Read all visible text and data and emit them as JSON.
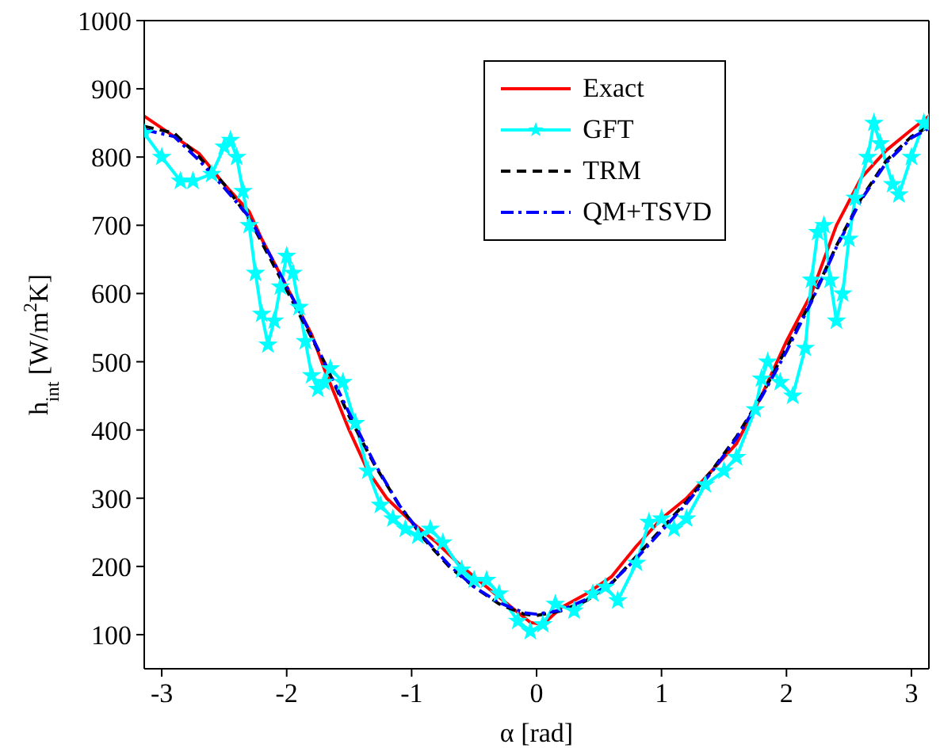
{
  "chart_data": {
    "type": "line",
    "xlabel": "α [rad]",
    "ylabel": "h$_{int}$ [W/m$^{2}$K]",
    "xlim": [
      -3.14,
      3.14
    ],
    "ylim": [
      50,
      1000
    ],
    "xticks": [
      -3,
      -2,
      -1,
      0,
      1,
      2,
      3
    ],
    "yticks": [
      100,
      200,
      300,
      400,
      500,
      600,
      700,
      800,
      900,
      1000
    ],
    "grid": false,
    "legend": "top right",
    "series": [
      {
        "name": "Exact",
        "color": "#ff0000",
        "line_style": "solid",
        "marker": "none",
        "x": [
          -3.14,
          -2.9,
          -2.7,
          -2.5,
          -2.3,
          -2.2,
          -2.0,
          -1.8,
          -1.7,
          -1.5,
          -1.35,
          -1.2,
          -1.0,
          -0.8,
          -0.6,
          -0.4,
          -0.2,
          -0.05,
          0.05,
          0.2,
          0.4,
          0.6,
          0.8,
          1.0,
          1.2,
          1.4,
          1.6,
          1.8,
          1.9,
          2.0,
          2.2,
          2.4,
          2.6,
          2.8,
          3.0,
          3.14
        ],
        "values": [
          860,
          830,
          805,
          760,
          720,
          680,
          610,
          540,
          490,
          400,
          340,
          300,
          265,
          235,
          200,
          170,
          140,
          118,
          115,
          140,
          160,
          185,
          230,
          270,
          300,
          340,
          380,
          450,
          490,
          530,
          600,
          700,
          770,
          810,
          840,
          860
        ]
      },
      {
        "name": "GFT",
        "color": "#00ffff",
        "line_style": "solid",
        "marker": "star",
        "x": [
          -3.14,
          -3.0,
          -2.85,
          -2.75,
          -2.6,
          -2.5,
          -2.45,
          -2.4,
          -2.35,
          -2.3,
          -2.25,
          -2.2,
          -2.15,
          -2.1,
          -2.05,
          -2.0,
          -1.95,
          -1.9,
          -1.85,
          -1.8,
          -1.75,
          -1.7,
          -1.65,
          -1.55,
          -1.45,
          -1.35,
          -1.25,
          -1.15,
          -1.05,
          -0.95,
          -0.85,
          -0.75,
          -0.6,
          -0.5,
          -0.4,
          -0.3,
          -0.15,
          -0.05,
          0.05,
          0.15,
          0.3,
          0.45,
          0.55,
          0.65,
          0.8,
          0.9,
          1.0,
          1.1,
          1.2,
          1.35,
          1.5,
          1.6,
          1.75,
          1.8,
          1.85,
          1.95,
          2.05,
          2.15,
          2.2,
          2.25,
          2.3,
          2.35,
          2.4,
          2.45,
          2.5,
          2.55,
          2.65,
          2.7,
          2.75,
          2.85,
          2.9,
          3.0,
          3.1,
          3.14
        ],
        "values": [
          835,
          800,
          765,
          765,
          775,
          815,
          825,
          800,
          750,
          700,
          630,
          570,
          525,
          560,
          610,
          655,
          630,
          580,
          530,
          480,
          460,
          470,
          490,
          470,
          410,
          340,
          290,
          270,
          255,
          245,
          255,
          235,
          195,
          180,
          180,
          160,
          120,
          105,
          115,
          145,
          135,
          160,
          170,
          150,
          205,
          265,
          270,
          255,
          270,
          320,
          340,
          360,
          430,
          475,
          500,
          470,
          450,
          520,
          620,
          690,
          700,
          620,
          560,
          600,
          680,
          740,
          800,
          850,
          820,
          760,
          745,
          800,
          850,
          850
        ]
      },
      {
        "name": "TRM",
        "color": "#000000",
        "line_style": "dashed",
        "marker": "none",
        "x": [
          -3.14,
          -2.9,
          -2.7,
          -2.5,
          -2.3,
          -2.1,
          -1.9,
          -1.7,
          -1.5,
          -1.3,
          -1.1,
          -0.9,
          -0.7,
          -0.5,
          -0.3,
          -0.1,
          0,
          0.2,
          0.4,
          0.6,
          0.8,
          1.0,
          1.2,
          1.4,
          1.6,
          1.8,
          2.0,
          2.2,
          2.4,
          2.6,
          2.8,
          3.0,
          3.14
        ],
        "values": [
          845,
          835,
          800,
          760,
          710,
          640,
          570,
          500,
          420,
          350,
          290,
          240,
          200,
          170,
          145,
          130,
          128,
          135,
          150,
          175,
          215,
          255,
          295,
          340,
          390,
          450,
          520,
          590,
          670,
          740,
          795,
          830,
          845
        ]
      },
      {
        "name": "QM+TSVD",
        "color": "#0000ff",
        "line_style": "dashdot",
        "marker": "none",
        "x": [
          -3.14,
          -2.9,
          -2.7,
          -2.5,
          -2.3,
          -2.1,
          -1.9,
          -1.7,
          -1.5,
          -1.3,
          -1.1,
          -0.9,
          -0.7,
          -0.5,
          -0.3,
          -0.1,
          0,
          0.2,
          0.4,
          0.6,
          0.8,
          1.0,
          1.2,
          1.4,
          1.6,
          1.8,
          2.0,
          2.2,
          2.4,
          2.6,
          2.8,
          3.0,
          3.14
        ],
        "values": [
          840,
          830,
          795,
          755,
          712,
          645,
          575,
          500,
          425,
          352,
          290,
          242,
          202,
          170,
          147,
          132,
          130,
          136,
          152,
          176,
          212,
          252,
          292,
          338,
          388,
          448,
          515,
          588,
          668,
          738,
          792,
          828,
          842
        ]
      }
    ]
  }
}
